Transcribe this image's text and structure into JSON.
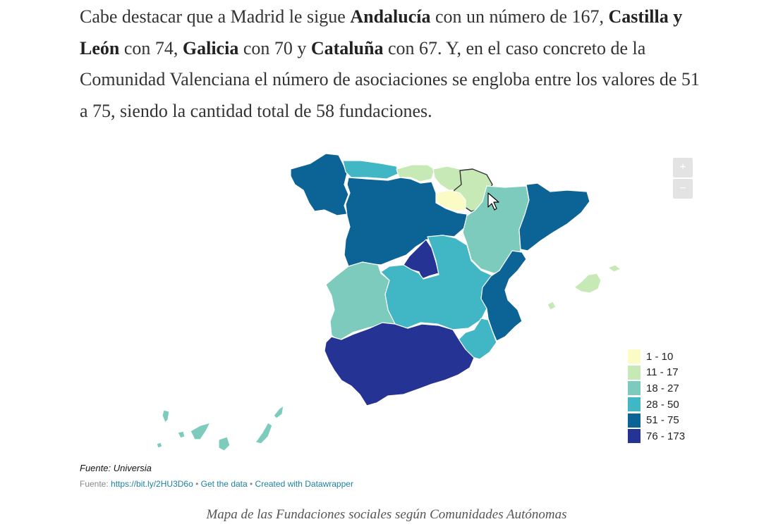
{
  "article": {
    "p1": "Cabe destacar que a Madrid le sigue ",
    "b1": "Andalucía",
    "p2": " con un número de 167, ",
    "b2": "Castilla y León",
    "p3": " con 74, ",
    "b3": "Galicia",
    "p4": " con 70 y ",
    "b4": "Cataluña",
    "p5": " con 67. Y, en el caso concreto de la Comunidad Valenciana el número de asociaciones se engloba entre los valores de 51 a 75, siendo la cantidad total de 58 fundaciones."
  },
  "map": {
    "zoom_in": "+",
    "zoom_out": "−",
    "legend": [
      {
        "label": "1 - 10",
        "color": "#fbfbc6"
      },
      {
        "label": "11 - 17",
        "color": "#c7e9b5"
      },
      {
        "label": "18 - 27",
        "color": "#7ccbbd"
      },
      {
        "label": "28 - 50",
        "color": "#41b6c4"
      },
      {
        "label": "51 - 75",
        "color": "#0c6496"
      },
      {
        "label": "76 - 173",
        "color": "#253494"
      }
    ],
    "regions": [
      {
        "name": "Galicia",
        "class": "51 - 75"
      },
      {
        "name": "Asturias",
        "class": "28 - 50"
      },
      {
        "name": "Cantabria",
        "class": "11 - 17"
      },
      {
        "name": "País Vasco",
        "class": "11 - 17"
      },
      {
        "name": "Navarra",
        "class": "11 - 17"
      },
      {
        "name": "La Rioja",
        "class": "1 - 10"
      },
      {
        "name": "Castilla y León",
        "class": "51 - 75"
      },
      {
        "name": "Aragón",
        "class": "18 - 27"
      },
      {
        "name": "Cataluña",
        "class": "51 - 75"
      },
      {
        "name": "Madrid",
        "class": "76 - 173"
      },
      {
        "name": "Castilla-La Mancha",
        "class": "28 - 50"
      },
      {
        "name": "Extremadura",
        "class": "18 - 27"
      },
      {
        "name": "Comunidad Valenciana",
        "class": "51 - 75"
      },
      {
        "name": "Murcia",
        "class": "28 - 50"
      },
      {
        "name": "Andalucía",
        "class": "76 - 173"
      },
      {
        "name": "Islas Baleares",
        "class": "11 - 17"
      },
      {
        "name": "Canarias",
        "class": "18 - 27"
      }
    ]
  },
  "source": {
    "title": "Fuente: Universia",
    "prefix": "Fuente: ",
    "link": "https://bit.ly/2HU3D6o",
    "sep": " • ",
    "get_data": "Get the data",
    "created": "Created with Datawrapper"
  },
  "caption": "Mapa de las Fundaciones sociales según Comunidades Autónomas"
}
